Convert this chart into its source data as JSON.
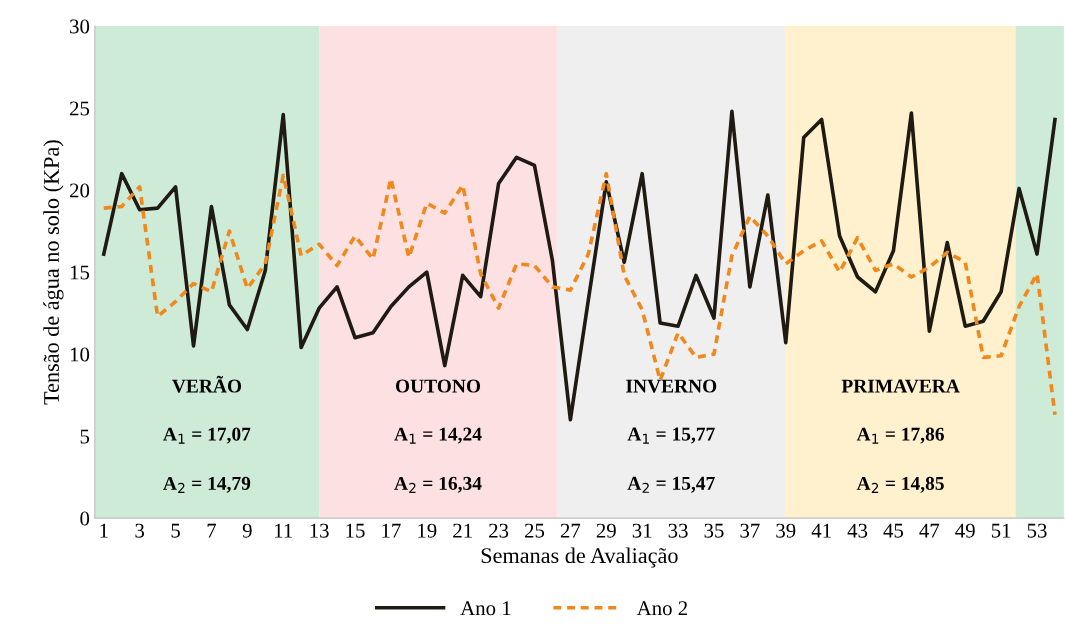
{
  "chart_data": {
    "type": "line",
    "xlabel": "Semanas de Avaliação",
    "ylabel": "Tensão de água no solo (KPa)",
    "x": [
      1,
      2,
      3,
      4,
      5,
      6,
      7,
      8,
      9,
      10,
      11,
      12,
      13,
      14,
      15,
      16,
      17,
      18,
      19,
      20,
      21,
      22,
      23,
      24,
      25,
      26,
      27,
      28,
      29,
      30,
      31,
      32,
      33,
      34,
      35,
      36,
      37,
      38,
      39,
      40,
      41,
      42,
      43,
      44,
      45,
      46,
      47,
      48,
      49,
      50,
      51,
      52,
      53,
      54
    ],
    "xlim": [
      0.5,
      54.5
    ],
    "xticks": [
      1,
      3,
      5,
      7,
      9,
      11,
      13,
      15,
      17,
      19,
      21,
      23,
      25,
      27,
      29,
      31,
      33,
      35,
      37,
      39,
      41,
      43,
      45,
      47,
      49,
      51,
      53
    ],
    "ylim": [
      0,
      30
    ],
    "yticks": [
      0,
      5,
      10,
      15,
      20,
      25,
      30
    ],
    "grid": false,
    "legend": "bottom",
    "series": [
      {
        "name": "Ano 1",
        "color": "#1f1a12",
        "line_style": "solid",
        "values": [
          16.1,
          21.0,
          18.8,
          18.9,
          20.2,
          10.5,
          19.0,
          13.0,
          11.5,
          15.1,
          24.6,
          10.4,
          12.8,
          14.1,
          11.0,
          11.3,
          12.9,
          14.1,
          15.0,
          9.3,
          14.8,
          13.5,
          20.4,
          22.0,
          21.5,
          15.7,
          6.0,
          13.3,
          20.5,
          15.6,
          21.0,
          11.9,
          11.7,
          14.8,
          12.2,
          24.8,
          14.1,
          19.7,
          10.7,
          23.2,
          24.3,
          17.2,
          14.7,
          13.8,
          16.3,
          24.7,
          11.4,
          16.8,
          11.7,
          12.0,
          13.8,
          20.1,
          16.1,
          24.3
        ]
      },
      {
        "name": "Ano 2",
        "color": "#f0881c",
        "line_style": "dashed",
        "values": [
          18.9,
          19.0,
          20.2,
          12.3,
          13.2,
          14.3,
          13.8,
          17.5,
          14.0,
          15.5,
          20.9,
          16.0,
          16.7,
          15.4,
          17.2,
          15.8,
          20.7,
          15.9,
          19.2,
          18.6,
          20.3,
          14.9,
          12.8,
          15.5,
          15.4,
          14.1,
          13.9,
          16.1,
          21.0,
          14.8,
          12.7,
          8.4,
          11.3,
          9.8,
          10.0,
          16.0,
          18.4,
          17.2,
          15.5,
          16.3,
          16.9,
          15.0,
          17.1,
          15.1,
          15.5,
          14.7,
          15.3,
          16.2,
          15.6,
          9.8,
          9.9,
          12.9,
          14.9,
          6.3
        ]
      }
    ],
    "bands": [
      {
        "axis": "x",
        "from": 0.5,
        "to": 13,
        "label": "VERÃO",
        "color": "#cdebd6"
      },
      {
        "axis": "x",
        "from": 13,
        "to": 26.25,
        "label": "OUTONO",
        "color": "#fde0e1"
      },
      {
        "axis": "x",
        "from": 26.25,
        "to": 39,
        "label": "INVERNO",
        "color": "#efefef"
      },
      {
        "axis": "x",
        "from": 39,
        "to": 51.8,
        "label": "PRIMAVERA",
        "color": "#fff1cd"
      },
      {
        "axis": "x",
        "from": 51.8,
        "to": 54.5,
        "color": "#cdebd6"
      }
    ],
    "annotations": [
      "A$_{1}$ = 17,07",
      "A$_{2}$ = 14,79",
      "A$_{1}$ = 14,24",
      "A$_{2}$ = 16,34",
      "A$_{1}$ = 15,77",
      "A$_{2}$ = 15,47",
      "A$_{1}$ = 17,86",
      "A$_{2}$ = 14,85"
    ]
  }
}
